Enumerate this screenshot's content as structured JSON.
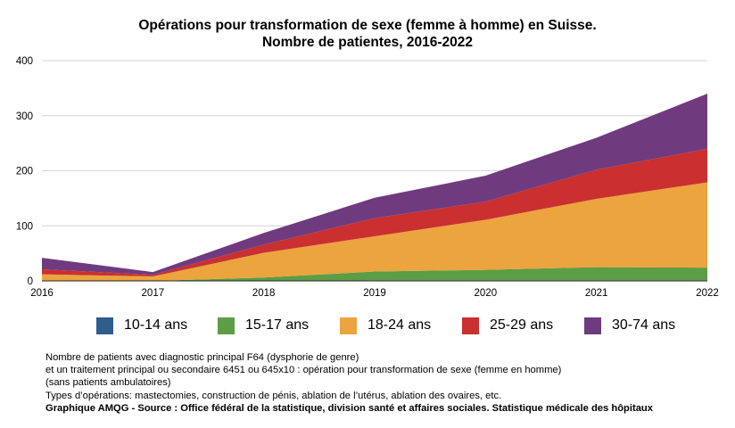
{
  "title_lines": [
    "Opérations pour transformation de sexe (femme à homme) en Suisse.",
    "Nombre de patientes, 2016-2022"
  ],
  "notes": [
    "Nombre de patients avec diagnostic principal F64 (dysphorie de genre)",
    "et un traitement principal ou secondaire 6451 ou 645x10 : opération pour transformation de sexe (femme en homme)",
    "(sans patients ambulatoires)",
    "Types d’opérations: mastectomies, construction de pénis, ablation de l’utérus, ablation des ovaires, etc."
  ],
  "source": "Graphique AMQG - Source : Office fédéral de la statistique, division santé et affaires sociales. Statistique médicale des hôpitaux",
  "chart_data": {
    "type": "area",
    "stacked": true,
    "title": "Opérations pour transformation de sexe (femme à homme) en Suisse. Nombre de patientes, 2016-2022",
    "x": [
      "2016",
      "2017",
      "2018",
      "2019",
      "2020",
      "2021",
      "2022"
    ],
    "ylim": [
      0,
      400
    ],
    "yticks": [
      "0",
      "100",
      "200",
      "300",
      "400"
    ],
    "grid": true,
    "legend_position": "bottom",
    "series": [
      {
        "name": "10-14 ans",
        "color": "#2e5d8e",
        "values": [
          0,
          0,
          0,
          1,
          1,
          1,
          1
        ]
      },
      {
        "name": "15-17 ans",
        "color": "#5c9d45",
        "values": [
          1,
          0,
          6,
          16,
          19,
          24,
          23
        ]
      },
      {
        "name": "18-24 ans",
        "color": "#eba43e",
        "values": [
          11,
          8,
          45,
          64,
          91,
          124,
          155
        ]
      },
      {
        "name": "25-29 ans",
        "color": "#c9302f",
        "values": [
          9,
          3,
          15,
          33,
          33,
          53,
          61
        ]
      },
      {
        "name": "30-74 ans",
        "color": "#6f3b7e",
        "values": [
          21,
          5,
          21,
          37,
          47,
          58,
          100
        ]
      }
    ]
  }
}
